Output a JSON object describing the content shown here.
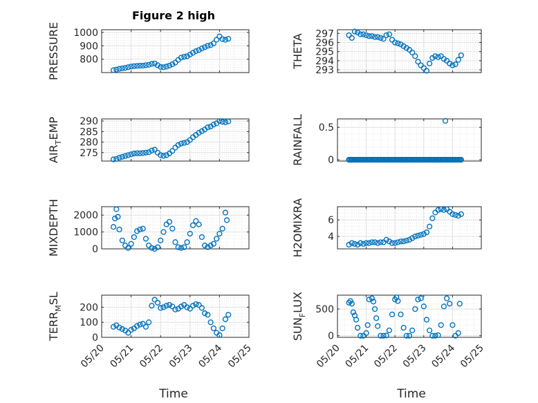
{
  "figure": {
    "title": "Figure 2 high",
    "xlabel": "Time"
  },
  "colors": {
    "marker": "#0072BD",
    "axis": "#262626",
    "grid": "#dfdfdf"
  },
  "chart_data": [
    {
      "type": "scatter",
      "id": "pressure",
      "title": "Figure 2 high",
      "ylabel_parts": [
        "PRESSURE"
      ],
      "ylim": [
        700,
        1020
      ],
      "yticks": [
        800,
        900,
        1000
      ],
      "xticks": [
        "05/20",
        "05/21",
        "05/22",
        "05/23",
        "05/24",
        "05/25"
      ],
      "x_range_days": [
        20,
        25
      ],
      "x": [
        20.4,
        20.5,
        20.6,
        20.7,
        20.8,
        20.9,
        21.0,
        21.1,
        21.2,
        21.3,
        21.4,
        21.5,
        21.6,
        21.7,
        21.8,
        21.9,
        22.0,
        22.1,
        22.2,
        22.3,
        22.4,
        22.5,
        22.6,
        22.7,
        22.8,
        22.9,
        23.0,
        23.1,
        23.2,
        23.3,
        23.4,
        23.5,
        23.6,
        23.7,
        23.8,
        23.9,
        24.0,
        24.1,
        24.2,
        24.3
      ],
      "y": [
        718,
        722,
        728,
        732,
        735,
        740,
        745,
        748,
        750,
        752,
        752,
        755,
        758,
        765,
        768,
        755,
        742,
        740,
        745,
        752,
        762,
        775,
        795,
        812,
        818,
        822,
        835,
        848,
        860,
        868,
        880,
        890,
        900,
        905,
        918,
        945,
        970,
        950,
        945,
        952
      ]
    },
    {
      "type": "scatter",
      "id": "theta",
      "ylabel_parts": [
        "THETA"
      ],
      "ylim": [
        292.7,
        297.4
      ],
      "yticks": [
        293,
        294,
        295,
        296,
        297
      ],
      "xticks": [
        "05/20",
        "05/21",
        "05/22",
        "05/23",
        "05/24",
        "05/25"
      ],
      "x_range_days": [
        20,
        25
      ],
      "x": [
        20.4,
        20.5,
        20.6,
        20.7,
        20.8,
        20.9,
        21.0,
        21.1,
        21.2,
        21.3,
        21.4,
        21.5,
        21.6,
        21.7,
        21.8,
        21.9,
        22.0,
        22.1,
        22.2,
        22.3,
        22.4,
        22.5,
        22.6,
        22.7,
        22.8,
        22.9,
        23.0,
        23.1,
        23.2,
        23.3,
        23.4,
        23.5,
        23.6,
        23.7,
        23.8,
        23.9,
        24.0,
        24.1,
        24.2,
        24.3
      ],
      "y": [
        296.8,
        296.5,
        297.2,
        297.1,
        296.9,
        296.9,
        296.8,
        296.7,
        296.7,
        296.6,
        296.6,
        296.5,
        296.4,
        296.8,
        296.9,
        296.3,
        296.0,
        295.9,
        295.8,
        295.6,
        295.4,
        295.2,
        294.9,
        294.5,
        293.9,
        293.5,
        293.2,
        292.9,
        293.7,
        294.3,
        294.5,
        294.4,
        294.5,
        294.2,
        294.0,
        293.7,
        293.5,
        293.6,
        294.1,
        294.6
      ]
    },
    {
      "type": "scatter",
      "id": "air_temp",
      "ylabel_parts": [
        "AIR",
        "T",
        "EMP"
      ],
      "ylim": [
        271,
        291
      ],
      "yticks": [
        275,
        280,
        285,
        290
      ],
      "xticks": [
        "05/20",
        "05/21",
        "05/22",
        "05/23",
        "05/24",
        "05/25"
      ],
      "x_range_days": [
        20,
        25
      ],
      "x": [
        20.4,
        20.5,
        20.6,
        20.7,
        20.8,
        20.9,
        21.0,
        21.1,
        21.2,
        21.3,
        21.4,
        21.5,
        21.6,
        21.7,
        21.8,
        21.9,
        22.0,
        22.1,
        22.2,
        22.3,
        22.4,
        22.5,
        22.6,
        22.7,
        22.8,
        22.9,
        23.0,
        23.1,
        23.2,
        23.3,
        23.4,
        23.5,
        23.6,
        23.7,
        23.8,
        23.9,
        24.0,
        24.1,
        24.2,
        24.3
      ],
      "y": [
        271.8,
        272.0,
        272.6,
        273.0,
        273.4,
        273.8,
        274.2,
        274.6,
        274.7,
        274.7,
        274.8,
        275.0,
        275.2,
        276.0,
        276.4,
        275.0,
        273.8,
        273.5,
        273.8,
        274.6,
        275.8,
        277.4,
        278.6,
        279.3,
        279.6,
        280.0,
        281.0,
        282.3,
        283.4,
        284.4,
        285.2,
        286.0,
        287.0,
        287.4,
        288.3,
        288.9,
        290.0,
        289.6,
        289.4,
        289.8
      ]
    },
    {
      "type": "scatter",
      "id": "rainfall",
      "ylabel_parts": [
        "RAINFALL"
      ],
      "ylim": [
        -0.02,
        0.63
      ],
      "yticks": [
        0,
        0.5
      ],
      "xticks": [
        "05/20",
        "05/21",
        "05/22",
        "05/23",
        "05/24",
        "05/25"
      ],
      "x_range_days": [
        20,
        25
      ],
      "x": [
        20.4,
        20.5,
        20.6,
        20.7,
        20.8,
        20.9,
        21.0,
        21.1,
        21.2,
        21.3,
        21.4,
        21.5,
        21.6,
        21.7,
        21.8,
        21.9,
        22.0,
        22.1,
        22.2,
        22.3,
        22.4,
        22.5,
        22.6,
        22.7,
        22.8,
        22.9,
        23.0,
        23.1,
        23.2,
        23.3,
        23.4,
        23.5,
        23.6,
        23.7,
        23.8,
        23.9,
        24.0,
        24.1,
        24.2,
        24.3,
        23.75
      ],
      "y": [
        0,
        0,
        0,
        0,
        0,
        0,
        0,
        0,
        0,
        0,
        0,
        0,
        0,
        0,
        0,
        0,
        0,
        0,
        0,
        0,
        0,
        0,
        0,
        0,
        0,
        0,
        0,
        0,
        0,
        0,
        0,
        0,
        0,
        0,
        0,
        0,
        0,
        0,
        0,
        0,
        0.6
      ]
    },
    {
      "type": "scatter",
      "id": "mixdepth",
      "ylabel_parts": [
        "MIXDEPTH"
      ],
      "ylim": [
        0,
        2500
      ],
      "yticks": [
        0,
        1000,
        2000
      ],
      "xticks": [
        "05/20",
        "05/21",
        "05/22",
        "05/23",
        "05/24",
        "05/25"
      ],
      "x_range_days": [
        20,
        25
      ],
      "x": [
        20.4,
        20.45,
        20.5,
        20.55,
        20.6,
        20.7,
        20.8,
        20.9,
        21.0,
        21.1,
        21.2,
        21.3,
        21.4,
        21.5,
        21.6,
        21.7,
        21.8,
        21.9,
        22.0,
        22.1,
        22.2,
        22.3,
        22.4,
        22.5,
        22.6,
        22.7,
        22.8,
        22.9,
        23.0,
        23.1,
        23.2,
        23.3,
        23.4,
        23.5,
        23.6,
        23.7,
        23.8,
        23.9,
        24.0,
        24.1,
        24.2,
        24.25
      ],
      "y": [
        1300,
        1800,
        2350,
        1900,
        1150,
        500,
        200,
        50,
        300,
        700,
        1050,
        1150,
        1200,
        600,
        200,
        50,
        0,
        100,
        500,
        1000,
        1450,
        1600,
        1200,
        400,
        100,
        50,
        100,
        400,
        900,
        1400,
        1650,
        1450,
        700,
        200,
        100,
        200,
        300,
        600,
        900,
        1200,
        2150,
        1700
      ]
    },
    {
      "type": "scatter",
      "id": "h2omixra",
      "ylabel_parts": [
        "H2OMIXRA"
      ],
      "ylim": [
        2.5,
        7.6
      ],
      "yticks": [
        4,
        6
      ],
      "xticks": [
        "05/20",
        "05/21",
        "05/22",
        "05/23",
        "05/24",
        "05/25"
      ],
      "x_range_days": [
        20,
        25
      ],
      "x": [
        20.4,
        20.5,
        20.6,
        20.7,
        20.8,
        20.9,
        21.0,
        21.1,
        21.2,
        21.3,
        21.4,
        21.5,
        21.6,
        21.7,
        21.8,
        21.9,
        22.0,
        22.1,
        22.2,
        22.3,
        22.4,
        22.5,
        22.6,
        22.7,
        22.8,
        22.9,
        23.0,
        23.1,
        23.2,
        23.3,
        23.4,
        23.5,
        23.6,
        23.7,
        23.8,
        23.9,
        24.0,
        24.1,
        24.2,
        24.3
      ],
      "y": [
        3.0,
        3.2,
        3.1,
        3.0,
        3.2,
        3.1,
        3.2,
        3.2,
        3.3,
        3.3,
        3.2,
        3.3,
        3.3,
        3.6,
        3.4,
        3.2,
        3.2,
        3.3,
        3.4,
        3.4,
        3.5,
        3.6,
        3.8,
        4.0,
        4.1,
        4.2,
        4.3,
        4.5,
        5.2,
        6.2,
        6.9,
        7.2,
        7.3,
        7.2,
        7.3,
        7.0,
        6.7,
        6.6,
        6.5,
        6.7
      ]
    },
    {
      "type": "scatter",
      "id": "terr_msl",
      "ylabel_parts": [
        "TERR",
        "M",
        "SL"
      ],
      "ylim": [
        0,
        280
      ],
      "yticks": [
        0,
        100,
        200
      ],
      "xticks": [
        "05/20",
        "05/21",
        "05/22",
        "05/23",
        "05/24",
        "05/25"
      ],
      "x_range_days": [
        20,
        25
      ],
      "x": [
        20.4,
        20.5,
        20.6,
        20.7,
        20.8,
        20.9,
        21.0,
        21.1,
        21.2,
        21.3,
        21.4,
        21.5,
        21.6,
        21.7,
        21.8,
        21.9,
        22.0,
        22.1,
        22.2,
        22.3,
        22.4,
        22.5,
        22.6,
        22.7,
        22.8,
        22.9,
        23.0,
        23.1,
        23.2,
        23.3,
        23.4,
        23.5,
        23.6,
        23.7,
        23.8,
        23.9,
        24.0,
        24.1,
        24.2,
        24.3
      ],
      "y": [
        70,
        80,
        65,
        55,
        45,
        30,
        50,
        60,
        75,
        85,
        90,
        70,
        100,
        210,
        250,
        230,
        195,
        200,
        210,
        215,
        205,
        185,
        190,
        205,
        215,
        200,
        190,
        210,
        220,
        215,
        195,
        160,
        150,
        100,
        60,
        30,
        15,
        60,
        120,
        150
      ]
    },
    {
      "type": "scatter",
      "id": "sun_flux",
      "ylabel_parts": [
        "SUN",
        "F",
        "LUX"
      ],
      "ylim": [
        -30,
        760
      ],
      "yticks": [
        0,
        500
      ],
      "xticks": [
        "05/20",
        "05/21",
        "05/22",
        "05/23",
        "05/24",
        "05/25"
      ],
      "x_range_days": [
        20,
        25
      ],
      "x": [
        20.4,
        20.45,
        20.5,
        20.55,
        20.6,
        20.65,
        20.7,
        20.8,
        20.9,
        21.0,
        21.05,
        21.1,
        21.2,
        21.25,
        21.3,
        21.35,
        21.4,
        21.5,
        21.6,
        21.7,
        21.8,
        21.9,
        22.0,
        22.05,
        22.1,
        22.2,
        22.3,
        22.4,
        22.5,
        22.6,
        22.7,
        22.8,
        22.9,
        23.0,
        23.1,
        23.2,
        23.3,
        23.4,
        23.5,
        23.6,
        23.7,
        23.8,
        23.9,
        24.0,
        24.1,
        24.2,
        24.25
      ],
      "y": [
        620,
        650,
        600,
        440,
        380,
        300,
        150,
        0,
        0,
        50,
        200,
        680,
        700,
        640,
        500,
        330,
        180,
        0,
        0,
        5,
        100,
        400,
        680,
        720,
        650,
        400,
        150,
        0,
        0,
        100,
        500,
        680,
        700,
        550,
        300,
        100,
        0,
        0,
        10,
        200,
        550,
        700,
        600,
        200,
        0,
        50,
        600
      ]
    }
  ]
}
